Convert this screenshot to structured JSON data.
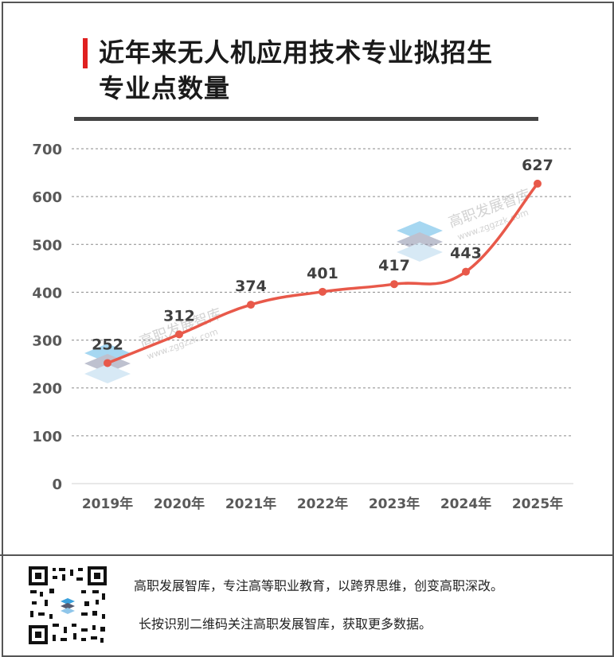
{
  "title_lines": [
    "近年来无人机应用技术专业拟招生",
    "专业点数量"
  ],
  "chart_data": {
    "type": "line",
    "title": "近年来无人机应用技术专业拟招生专业点数量",
    "categories": [
      "2019年",
      "2020年",
      "2021年",
      "2022年",
      "2023年",
      "2024年",
      "2025年"
    ],
    "values": [
      252,
      312,
      374,
      401,
      417,
      443,
      627
    ],
    "data_labels": [
      "252",
      "312",
      "374",
      "401",
      "417",
      "443",
      "627"
    ],
    "y_ticks": [
      0,
      100,
      200,
      300,
      400,
      500,
      600,
      700
    ],
    "ylim": [
      0,
      700
    ],
    "xlabel": "",
    "ylabel": "",
    "grid": true,
    "legend": "none",
    "line_color": "#e8594a"
  },
  "watermark": {
    "brand": "高职发展智库",
    "url": "www.zggzzk.com"
  },
  "footer": {
    "line1": "高职发展智库，专注高等职业教育，以跨界思维，创变高职深改。",
    "line2": "长按识别二维码关注高职发展智库，获取更多数据。"
  }
}
